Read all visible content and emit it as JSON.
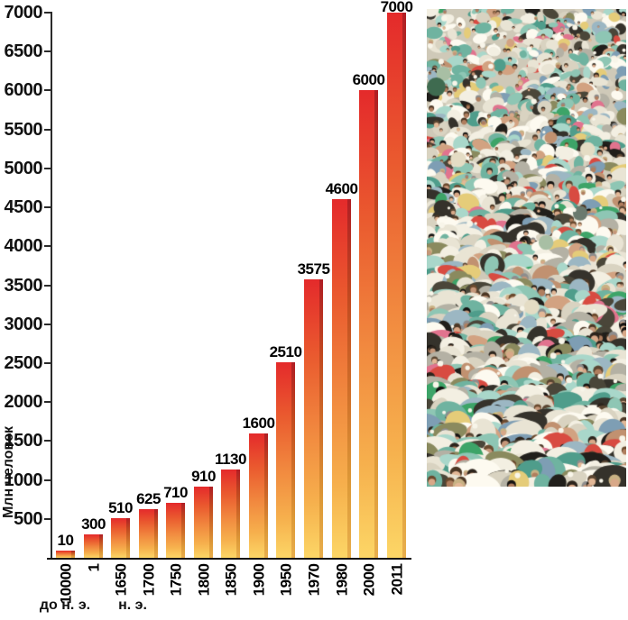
{
  "chart_data": {
    "type": "bar",
    "title": "",
    "xlabel": "",
    "ylabel": "Млн человек",
    "categories": [
      "10000",
      "1",
      "1650",
      "1700",
      "1750",
      "1800",
      "1850",
      "1900",
      "1950",
      "1970",
      "1980",
      "2000",
      "2011"
    ],
    "values": [
      10,
      300,
      510,
      625,
      710,
      910,
      1130,
      1600,
      2510,
      3575,
      4600,
      6000,
      7000
    ],
    "value_labels_shown": true,
    "ylim": [
      0,
      7000
    ],
    "ytick_step": 500,
    "yticks": [
      500,
      1000,
      1500,
      2000,
      2500,
      3000,
      3500,
      4000,
      4500,
      5000,
      5500,
      6000,
      6500,
      7000
    ],
    "x_axis_era_labels": [
      {
        "label": "до н. э.",
        "applies_to": "10000"
      },
      {
        "label": "н. э.",
        "applies_to": "1650"
      }
    ],
    "grid": false,
    "legend": null,
    "bar_gradient": [
      "#e42a2b",
      "#ea5b2f",
      "#f1893f",
      "#f6b04d",
      "#fcd666"
    ],
    "bar_side_gradient": [
      "#b01e24",
      "#c24a20",
      "#d0712a",
      "#dd9a38",
      "#e8ae4c"
    ],
    "gradient_stops_pct": [
      0,
      28,
      55,
      80,
      100
    ],
    "axis_color": "#2b2b2b",
    "text_color": "#111111"
  },
  "photo": {
    "name": "crowd-photo",
    "content": "dense outdoor crowd of people seen from above"
  }
}
